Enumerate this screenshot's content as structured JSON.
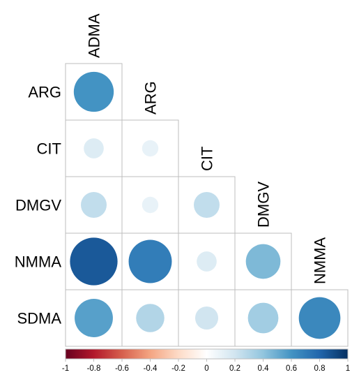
{
  "chart_data": {
    "type": "heatmap",
    "subtype": "correlation-circle-lower-triangle",
    "variables": [
      "ADMA",
      "ARG",
      "CIT",
      "DMGV",
      "NMMA",
      "SDMA"
    ],
    "row_labels": [
      "ARG",
      "CIT",
      "DMGV",
      "NMMA",
      "SDMA"
    ],
    "col_labels": [
      "ADMA",
      "ARG",
      "CIT",
      "DMGV",
      "NMMA"
    ],
    "cells": [
      {
        "row": "ARG",
        "col": "ADMA",
        "value": 0.6
      },
      {
        "row": "CIT",
        "col": "ADMA",
        "value": 0.15
      },
      {
        "row": "CIT",
        "col": "ARG",
        "value": 0.1
      },
      {
        "row": "DMGV",
        "col": "ADMA",
        "value": 0.25
      },
      {
        "row": "DMGV",
        "col": "ARG",
        "value": 0.1
      },
      {
        "row": "DMGV",
        "col": "CIT",
        "value": 0.25
      },
      {
        "row": "NMMA",
        "col": "ADMA",
        "value": 0.85
      },
      {
        "row": "NMMA",
        "col": "ARG",
        "value": 0.7
      },
      {
        "row": "NMMA",
        "col": "CIT",
        "value": 0.15
      },
      {
        "row": "NMMA",
        "col": "DMGV",
        "value": 0.45
      },
      {
        "row": "SDMA",
        "col": "ADMA",
        "value": 0.55
      },
      {
        "row": "SDMA",
        "col": "ARG",
        "value": 0.3
      },
      {
        "row": "SDMA",
        "col": "CIT",
        "value": 0.2
      },
      {
        "row": "SDMA",
        "col": "DMGV",
        "value": 0.35
      },
      {
        "row": "SDMA",
        "col": "NMMA",
        "value": 0.65
      }
    ],
    "colorbar": {
      "range": [
        -1,
        1
      ],
      "ticks": [
        "-1",
        "-0.8",
        "-0.6",
        "-0.4",
        "-0.2",
        "0",
        "0.2",
        "0.4",
        "0.6",
        "0.8",
        "1"
      ],
      "placement": "bottom",
      "colors": [
        "#67001F",
        "#B2182B",
        "#D6604D",
        "#F4A582",
        "#FDDBC7",
        "#FFFFFF",
        "#D1E5F0",
        "#92C5DE",
        "#4393C3",
        "#2166AC",
        "#053061"
      ]
    },
    "grid": true,
    "legend": "colorbar-bottom"
  }
}
